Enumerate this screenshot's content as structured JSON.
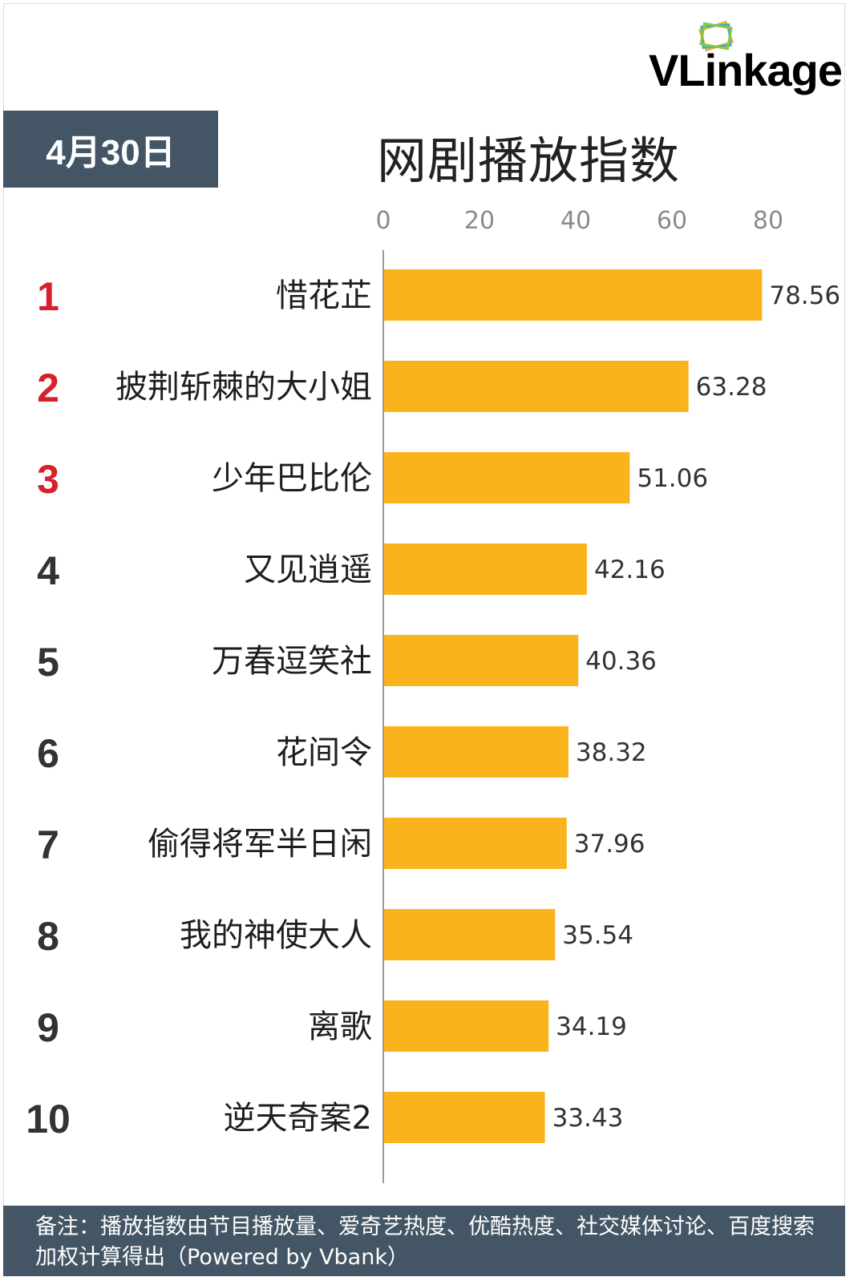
{
  "brand": {
    "logo_text": "VLinkage",
    "colors": {
      "accent": "#d6202a",
      "bar": "#fbb31d",
      "header_bg": "#445666",
      "rank_top": "#d6202a",
      "rank_other": "#333333"
    }
  },
  "header": {
    "date": "4月30日",
    "title": "网剧播放指数"
  },
  "chart_data": {
    "type": "bar",
    "orientation": "horizontal",
    "title": "网剧播放指数",
    "xlim": [
      0,
      80
    ],
    "ticks": [
      "0",
      "20",
      "40",
      "60",
      "80"
    ],
    "ranks": [
      "1",
      "2",
      "3",
      "4",
      "5",
      "6",
      "7",
      "8",
      "9",
      "10"
    ],
    "categories": [
      "惜花芷",
      "披荆斩棘的大小姐",
      "少年巴比伦",
      "又见逍遥",
      "万春逗笑社",
      "花间令",
      "偷得将军半日闲",
      "我的神使大人",
      "离歌",
      "逆天奇案2"
    ],
    "values": [
      78.56,
      63.28,
      51.06,
      42.16,
      40.36,
      38.32,
      37.96,
      35.54,
      34.19,
      33.43
    ],
    "value_labels": [
      "78.56",
      "63.28",
      "51.06",
      "42.16",
      "40.36",
      "38.32",
      "37.96",
      "35.54",
      "34.19",
      "33.43"
    ],
    "legend": "none",
    "grid": false
  },
  "footer": {
    "note": "备注：播放指数由节目播放量、爱奇艺热度、优酷热度、社交媒体讨论、百度搜索加权计算得出（Powered by Vbank）"
  }
}
